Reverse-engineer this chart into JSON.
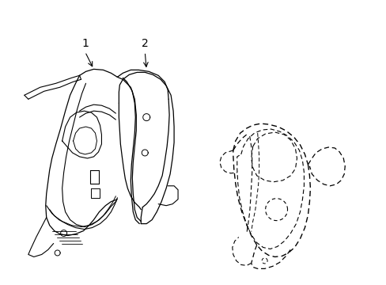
{
  "background_color": "#ffffff",
  "line_color": "#000000",
  "figsize": [
    4.89,
    3.6
  ],
  "dpi": 100,
  "label1": "1",
  "label2": "2"
}
